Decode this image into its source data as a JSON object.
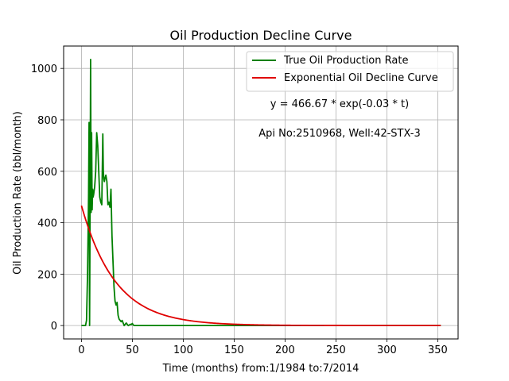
{
  "chart_data": {
    "type": "line",
    "title": "Oil Production Decline Curve",
    "xlabel": "Time (months) from:1/1984 to:7/2014",
    "ylabel": "Oil Production Rate (bbl/month)",
    "xlim": [
      -17.5,
      370
    ],
    "ylim": [
      -52,
      1087
    ],
    "xticks": [
      0,
      50,
      100,
      150,
      200,
      250,
      300,
      350
    ],
    "yticks": [
      0,
      200,
      400,
      600,
      800,
      1000
    ],
    "grid": true,
    "legend_position": "top-right",
    "annotations": [
      "y = 466.67 * exp(-0.03 * t)",
      "Api No:2510968, Well:42-STX-3"
    ],
    "series": [
      {
        "name": "True Oil Production Rate",
        "color": "#008000",
        "style": "line",
        "x": [
          0,
          1,
          2,
          3,
          4,
          5,
          6,
          7,
          7.5,
          8,
          8.5,
          9,
          9.5,
          10,
          10.5,
          11,
          11.5,
          12,
          13,
          14,
          15,
          16,
          17,
          18,
          19,
          20,
          21,
          21.5,
          22,
          22.5,
          23,
          24,
          25,
          26,
          27,
          28,
          29,
          30,
          31,
          31.5,
          32,
          33,
          34,
          35,
          36,
          37,
          38,
          39,
          40,
          41,
          42,
          43,
          44,
          45,
          46,
          47,
          48,
          49,
          50,
          51,
          52,
          55,
          60,
          80,
          100,
          150,
          200,
          250,
          300,
          353
        ],
        "y": [
          0,
          0,
          0,
          0,
          0,
          20,
          200,
          500,
          790,
          0,
          460,
          1035,
          440,
          750,
          450,
          530,
          500,
          510,
          540,
          600,
          750,
          700,
          600,
          500,
          480,
          470,
          745,
          600,
          570,
          560,
          570,
          585,
          560,
          470,
          480,
          460,
          530,
          350,
          250,
          200,
          150,
          95,
          80,
          90,
          40,
          25,
          20,
          15,
          20,
          10,
          0,
          5,
          10,
          5,
          0,
          2,
          5,
          4,
          8,
          2,
          0,
          0,
          0,
          0,
          0,
          0,
          0,
          0,
          0,
          0
        ]
      },
      {
        "name": "Exponential Oil Decline Curve",
        "color": "#e00000",
        "style": "function",
        "a": 466.67,
        "b": 0.03,
        "x_start": 0,
        "x_end": 353
      }
    ]
  }
}
